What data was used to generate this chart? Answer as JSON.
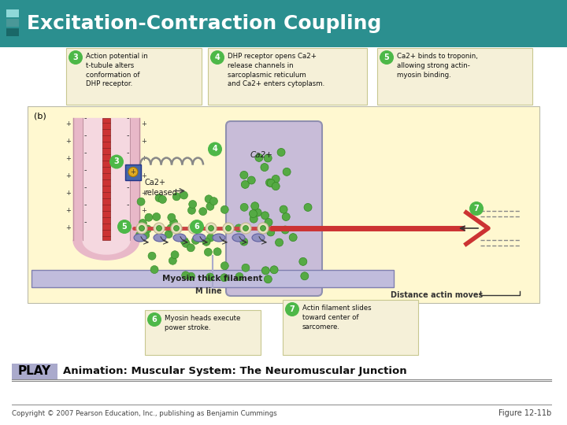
{
  "title": "Excitation-Contraction Coupling",
  "title_color": "#FFFFFF",
  "header_bg": "#2B8F8F",
  "box_bg": "#F5F0D8",
  "box_border": "#C8C890",
  "diagram_bg": "#FFF8DC",
  "play_bg": "#AAAACC",
  "step3_text": "Action potential in\nt-tubule alters\nconformation of\nDHP receptor.",
  "step4_text": "DHP receptor opens Ca2+\nrelease channels in\nsarcoplasmic reticulum\nand Ca2+ enters cytoplasm.",
  "step5_text": "Ca2+ binds to troponin,\nallowing strong actin-\nmyosin binding.",
  "step6_text": "Myosin heads execute\npower stroke.",
  "step7_text": "Actin filament slides\ntoward center of\nsarcomere.",
  "diagram_label_b": "(b)",
  "ca_released": "Ca2+\nreleased",
  "ca2plus": "Ca2+",
  "myosin_thick": "Myosin thick filament",
  "m_line": "M line",
  "distance_actin": "Distance actin moves",
  "animation_text": "Animation: Muscular System: The Neuromuscular Junction",
  "copyright_text": "Copyright © 2007 Pearson Education, Inc., publishing as Benjamin Cummings",
  "figure_text": "Figure 12-11b",
  "green": "#4DB848",
  "ca_dot_color": "#55AA44",
  "ca_dot_edge": "#338822"
}
